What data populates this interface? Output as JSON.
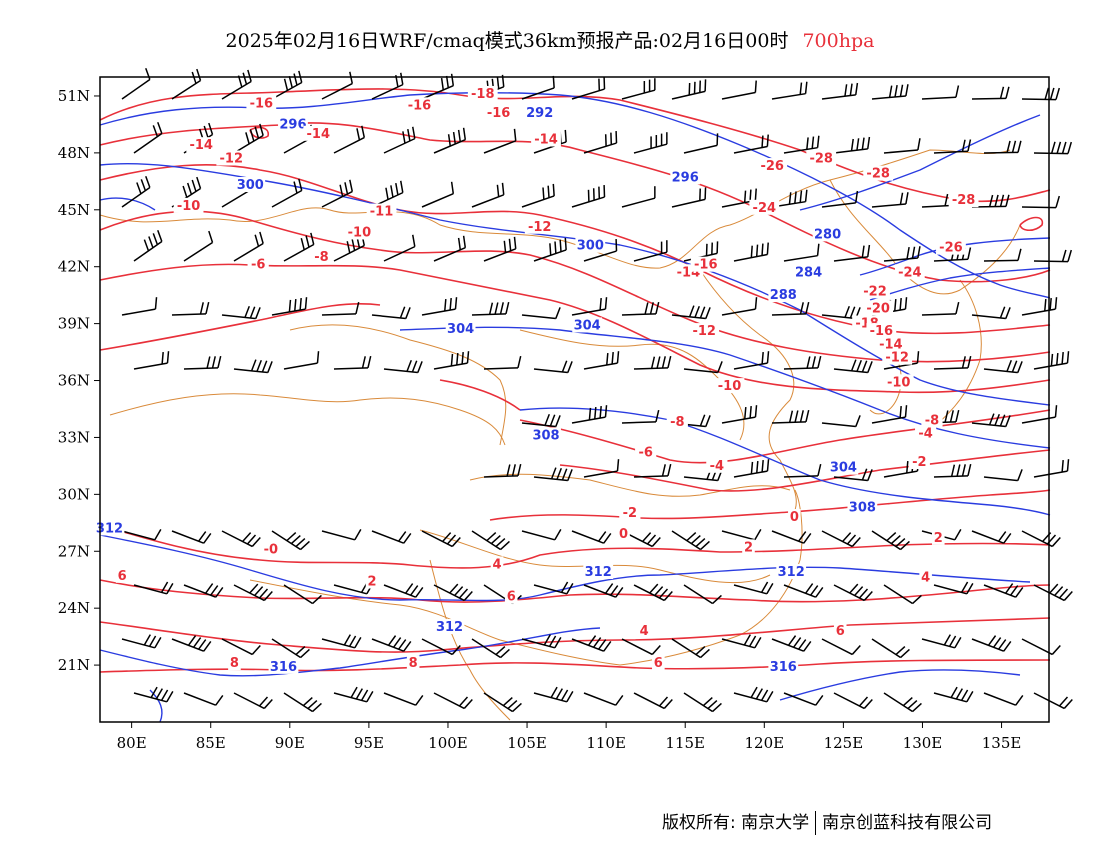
{
  "title": {
    "main": "2025年02月16日WRF/cmaq模式36km预报产品:02月16日00时",
    "level": "700hpa"
  },
  "map": {
    "lon_range": [
      78,
      138
    ],
    "lat_range": [
      18,
      52
    ],
    "x_ticks": [
      "80E",
      "85E",
      "90E",
      "95E",
      "100E",
      "105E",
      "110E",
      "115E",
      "120E",
      "125E",
      "130E",
      "135E"
    ],
    "x_tick_values": [
      80,
      85,
      90,
      95,
      100,
      105,
      110,
      115,
      120,
      125,
      130,
      135
    ],
    "y_ticks": [
      "21N",
      "24N",
      "27N",
      "30N",
      "33N",
      "36N",
      "39N",
      "42N",
      "45N",
      "48N",
      "51N"
    ],
    "y_tick_values": [
      21,
      24,
      27,
      30,
      33,
      36,
      39,
      42,
      45,
      48,
      51
    ],
    "colors": {
      "temperature": "#e8303a",
      "height": "#2a3ce0",
      "border": "#d98a3a",
      "barb": "#000000",
      "frame": "#000000"
    }
  },
  "height_labels": [
    {
      "text": "296",
      "lon": 90.2,
      "lat": 49.4
    },
    {
      "text": "292",
      "lon": 105.8,
      "lat": 50.0
    },
    {
      "text": "296",
      "lon": 115.0,
      "lat": 46.6
    },
    {
      "text": "300",
      "lon": 87.5,
      "lat": 46.2
    },
    {
      "text": "300",
      "lon": 109.0,
      "lat": 43.0
    },
    {
      "text": "280",
      "lon": 124.0,
      "lat": 43.6
    },
    {
      "text": "284",
      "lon": 122.8,
      "lat": 41.6
    },
    {
      "text": "288",
      "lon": 121.2,
      "lat": 40.4
    },
    {
      "text": "304",
      "lon": 100.8,
      "lat": 38.6
    },
    {
      "text": "304",
      "lon": 108.8,
      "lat": 38.8
    },
    {
      "text": "308",
      "lon": 106.2,
      "lat": 33.0
    },
    {
      "text": "304",
      "lon": 125.0,
      "lat": 31.3
    },
    {
      "text": "308",
      "lon": 126.2,
      "lat": 29.2
    },
    {
      "text": "312",
      "lon": 78.6,
      "lat": 28.1
    },
    {
      "text": "312",
      "lon": 109.5,
      "lat": 25.8
    },
    {
      "text": "312",
      "lon": 121.7,
      "lat": 25.8
    },
    {
      "text": "312",
      "lon": 100.1,
      "lat": 22.9
    },
    {
      "text": "316",
      "lon": 121.2,
      "lat": 20.8
    },
    {
      "text": "316",
      "lon": 89.6,
      "lat": 20.8
    }
  ],
  "temperature_labels": [
    {
      "text": "-16",
      "lon": 88.2,
      "lat": 50.5
    },
    {
      "text": "-16",
      "lon": 98.2,
      "lat": 50.4
    },
    {
      "text": "-18",
      "lon": 102.2,
      "lat": 51.0
    },
    {
      "text": "-16",
      "lon": 103.2,
      "lat": 50.0
    },
    {
      "text": "-14",
      "lon": 91.8,
      "lat": 48.9
    },
    {
      "text": "-14",
      "lon": 84.4,
      "lat": 48.3
    },
    {
      "text": "-12",
      "lon": 86.3,
      "lat": 47.6
    },
    {
      "text": "-14",
      "lon": 106.2,
      "lat": 48.6
    },
    {
      "text": "-10",
      "lon": 83.6,
      "lat": 45.1
    },
    {
      "text": "-11",
      "lon": 95.8,
      "lat": 44.8
    },
    {
      "text": "-10",
      "lon": 94.4,
      "lat": 43.7
    },
    {
      "text": "-12",
      "lon": 105.8,
      "lat": 44.0
    },
    {
      "text": "-8",
      "lon": 92.0,
      "lat": 42.4
    },
    {
      "text": "-6",
      "lon": 88.0,
      "lat": 42.0
    },
    {
      "text": "-14",
      "lon": 115.2,
      "lat": 41.6
    },
    {
      "text": "-16",
      "lon": 116.3,
      "lat": 42.0
    },
    {
      "text": "-12",
      "lon": 116.2,
      "lat": 38.5
    },
    {
      "text": "-24",
      "lon": 120.0,
      "lat": 45.0
    },
    {
      "text": "-26",
      "lon": 120.5,
      "lat": 47.2
    },
    {
      "text": "-28",
      "lon": 123.6,
      "lat": 47.6
    },
    {
      "text": "-28",
      "lon": 127.2,
      "lat": 46.8
    },
    {
      "text": "-28",
      "lon": 132.6,
      "lat": 45.4
    },
    {
      "text": "-26",
      "lon": 131.8,
      "lat": 42.9
    },
    {
      "text": "-24",
      "lon": 129.2,
      "lat": 41.6
    },
    {
      "text": "-22",
      "lon": 127.0,
      "lat": 40.6
    },
    {
      "text": "-20",
      "lon": 127.2,
      "lat": 39.7
    },
    {
      "text": "-18",
      "lon": 126.5,
      "lat": 38.9
    },
    {
      "text": "-16",
      "lon": 127.4,
      "lat": 38.5
    },
    {
      "text": "-14",
      "lon": 128.0,
      "lat": 37.8
    },
    {
      "text": "-12",
      "lon": 128.4,
      "lat": 37.1
    },
    {
      "text": "-10",
      "lon": 128.5,
      "lat": 35.8
    },
    {
      "text": "-10",
      "lon": 117.8,
      "lat": 35.6
    },
    {
      "text": "-8",
      "lon": 130.6,
      "lat": 33.8
    },
    {
      "text": "-8",
      "lon": 114.5,
      "lat": 33.7
    },
    {
      "text": "-6",
      "lon": 112.5,
      "lat": 32.1
    },
    {
      "text": "-4",
      "lon": 130.2,
      "lat": 33.1
    },
    {
      "text": "-4",
      "lon": 117.0,
      "lat": 31.4
    },
    {
      "text": "-2",
      "lon": 129.8,
      "lat": 31.6
    },
    {
      "text": "-2",
      "lon": 111.5,
      "lat": 28.9
    },
    {
      "text": "0",
      "lon": 111.1,
      "lat": 27.8
    },
    {
      "text": "0",
      "lon": 121.9,
      "lat": 28.7
    },
    {
      "text": "2",
      "lon": 119.0,
      "lat": 27.1
    },
    {
      "text": "2",
      "lon": 131.0,
      "lat": 27.6
    },
    {
      "text": "2",
      "lon": 95.2,
      "lat": 25.3
    },
    {
      "text": "4",
      "lon": 103.1,
      "lat": 26.2
    },
    {
      "text": "4",
      "lon": 130.2,
      "lat": 25.5
    },
    {
      "text": "4",
      "lon": 112.4,
      "lat": 22.7
    },
    {
      "text": "6",
      "lon": 79.4,
      "lat": 25.6
    },
    {
      "text": "6",
      "lon": 104.0,
      "lat": 24.5
    },
    {
      "text": "6",
      "lon": 124.8,
      "lat": 22.7
    },
    {
      "text": "6",
      "lon": 113.3,
      "lat": 21.0
    },
    {
      "text": "8",
      "lon": 97.8,
      "lat": 21.0
    },
    {
      "text": "8",
      "lon": 86.5,
      "lat": 21.0
    },
    {
      "text": "-0",
      "lon": 88.8,
      "lat": 27.0
    }
  ],
  "footer": {
    "copyright": "版权所有: 南京大学",
    "partner": "南京创蓝科技有限公司"
  }
}
